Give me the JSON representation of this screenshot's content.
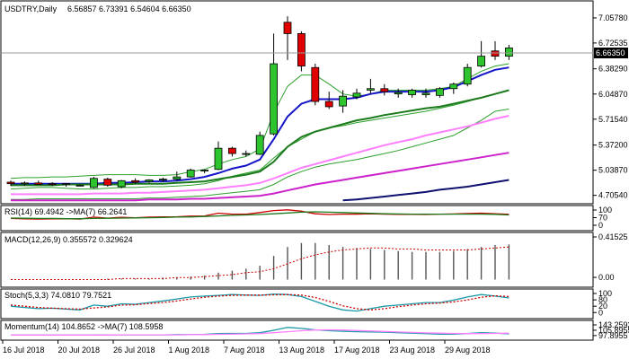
{
  "chart_data": {
    "type": "candlestick",
    "symbol_tf": "USDTRY,Daily",
    "ohlc_header": "6.56857 6.73391 6.54604 6.66350",
    "current_price_label": "6.66350",
    "y_ticks": [
      "7.05780",
      "6.72535",
      "6.38290",
      "6.04870",
      "5.71540",
      "5.37200",
      "5.03870",
      "4.70540"
    ],
    "x_ticks": [
      "16 Jul 2018",
      "20 Jul 2018",
      "26 Jul 2018",
      "1 Aug 2018",
      "7 Aug 2018",
      "13 Aug 2018",
      "17 Aug 2018",
      "23 Aug 2018",
      "29 Aug 2018"
    ],
    "y_range": [
      4.63,
      7.2
    ],
    "candles": [
      {
        "o": 4.88,
        "h": 4.9,
        "l": 4.83,
        "c": 4.86
      },
      {
        "o": 4.86,
        "h": 4.89,
        "l": 4.83,
        "c": 4.87
      },
      {
        "o": 4.87,
        "h": 4.9,
        "l": 4.85,
        "c": 4.85
      },
      {
        "o": 4.86,
        "h": 4.88,
        "l": 4.83,
        "c": 4.85
      },
      {
        "o": 4.85,
        "h": 4.87,
        "l": 4.82,
        "c": 4.86
      },
      {
        "o": 4.84,
        "h": 4.85,
        "l": 4.83,
        "c": 4.84
      },
      {
        "o": 4.81,
        "h": 4.95,
        "l": 4.8,
        "c": 4.93
      },
      {
        "o": 4.92,
        "h": 4.94,
        "l": 4.82,
        "c": 4.84
      },
      {
        "o": 4.82,
        "h": 4.91,
        "l": 4.8,
        "c": 4.9
      },
      {
        "o": 4.9,
        "h": 4.93,
        "l": 4.86,
        "c": 4.88
      },
      {
        "o": 4.89,
        "h": 4.92,
        "l": 4.87,
        "c": 4.91
      },
      {
        "o": 4.91,
        "h": 4.94,
        "l": 4.88,
        "c": 4.92
      },
      {
        "o": 4.92,
        "h": 5.02,
        "l": 4.9,
        "c": 4.95
      },
      {
        "o": 4.95,
        "h": 5.06,
        "l": 4.94,
        "c": 5.04
      },
      {
        "o": 5.03,
        "h": 5.05,
        "l": 5.0,
        "c": 5.04
      },
      {
        "o": 5.05,
        "h": 5.42,
        "l": 5.04,
        "c": 5.33
      },
      {
        "o": 5.33,
        "h": 5.35,
        "l": 5.22,
        "c": 5.26
      },
      {
        "o": 5.26,
        "h": 5.3,
        "l": 5.22,
        "c": 5.26
      },
      {
        "o": 5.25,
        "h": 5.55,
        "l": 5.24,
        "c": 5.5
      },
      {
        "o": 5.52,
        "h": 6.85,
        "l": 5.5,
        "c": 6.45
      },
      {
        "o": 7.0,
        "h": 7.08,
        "l": 6.5,
        "c": 6.85
      },
      {
        "o": 6.85,
        "h": 6.88,
        "l": 6.35,
        "c": 6.42
      },
      {
        "o": 6.4,
        "h": 6.45,
        "l": 5.9,
        "c": 5.95
      },
      {
        "o": 5.95,
        "h": 6.08,
        "l": 5.85,
        "c": 5.88
      },
      {
        "o": 5.89,
        "h": 6.1,
        "l": 5.8,
        "c": 6.02
      },
      {
        "o": 6.01,
        "h": 6.12,
        "l": 5.98,
        "c": 6.06
      },
      {
        "o": 6.1,
        "h": 6.25,
        "l": 6.05,
        "c": 6.12
      },
      {
        "o": 6.12,
        "h": 6.18,
        "l": 6.03,
        "c": 6.08
      },
      {
        "o": 6.05,
        "h": 6.12,
        "l": 6.0,
        "c": 6.07
      },
      {
        "o": 6.04,
        "h": 6.12,
        "l": 6.0,
        "c": 6.1
      },
      {
        "o": 6.04,
        "h": 6.12,
        "l": 6.0,
        "c": 6.06
      },
      {
        "o": 6.03,
        "h": 6.14,
        "l": 6.0,
        "c": 6.12
      },
      {
        "o": 6.12,
        "h": 6.2,
        "l": 6.05,
        "c": 6.18
      },
      {
        "o": 6.18,
        "h": 6.45,
        "l": 6.15,
        "c": 6.4
      },
      {
        "o": 6.42,
        "h": 6.75,
        "l": 6.4,
        "c": 6.55
      },
      {
        "o": 6.62,
        "h": 6.75,
        "l": 6.5,
        "c": 6.55
      },
      {
        "o": 6.55,
        "h": 6.7,
        "l": 6.5,
        "c": 6.66
      }
    ],
    "overlays": [
      {
        "color": "#2ca02c",
        "values": [
          4.93,
          4.94,
          4.94,
          4.95,
          4.95,
          4.96,
          4.97,
          4.98,
          4.98,
          4.98,
          4.97,
          4.97,
          4.98,
          5.02,
          5.05,
          5.12,
          5.18,
          5.22,
          5.32,
          5.8,
          6.15,
          6.3,
          6.3,
          6.18,
          6.05,
          6.02,
          6.05,
          6.1,
          6.1,
          6.1,
          6.1,
          6.12,
          6.15,
          6.25,
          6.35,
          6.42,
          6.45
        ]
      },
      {
        "color": "#2ca02c",
        "values": [
          4.79,
          4.8,
          4.81,
          4.81,
          4.8,
          4.79,
          4.79,
          4.8,
          4.81,
          4.81,
          4.82,
          4.82,
          4.83,
          4.84,
          4.86,
          4.9,
          4.96,
          5.0,
          5.04,
          5.2,
          5.35,
          5.45,
          5.55,
          5.6,
          5.63,
          5.67,
          5.7,
          5.73,
          5.76,
          5.79,
          5.82,
          5.86,
          5.9,
          5.95,
          6.0,
          6.05,
          6.1
        ]
      },
      {
        "color": "#2ca02c",
        "values": [
          4.65,
          4.65,
          4.66,
          4.66,
          4.66,
          4.66,
          4.66,
          4.66,
          4.66,
          4.66,
          4.67,
          4.67,
          4.68,
          4.69,
          4.7,
          4.72,
          4.74,
          4.76,
          4.78,
          4.85,
          4.95,
          5.02,
          5.08,
          5.12,
          5.15,
          5.18,
          5.22,
          5.26,
          5.3,
          5.35,
          5.4,
          5.45,
          5.5,
          5.6,
          5.7,
          5.82,
          5.85
        ]
      },
      {
        "color": "#1515c8",
        "width": 2,
        "values": [
          4.86,
          4.86,
          4.86,
          4.86,
          4.86,
          4.86,
          4.86,
          4.87,
          4.87,
          4.88,
          4.89,
          4.89,
          4.9,
          4.92,
          4.95,
          5.0,
          5.06,
          5.1,
          5.18,
          5.45,
          5.75,
          5.92,
          5.98,
          5.98,
          5.98,
          6.0,
          6.05,
          6.08,
          6.08,
          6.08,
          6.08,
          6.1,
          6.14,
          6.22,
          6.3,
          6.37,
          6.4
        ]
      },
      {
        "color": "#1b7a1b",
        "width": 2,
        "values": [
          4.84,
          4.84,
          4.84,
          4.84,
          4.85,
          4.85,
          4.85,
          4.85,
          4.85,
          4.86,
          4.86,
          4.86,
          4.87,
          4.88,
          4.89,
          4.92,
          4.95,
          4.98,
          5.02,
          5.15,
          5.35,
          5.48,
          5.55,
          5.6,
          5.65,
          5.7,
          5.73,
          5.77,
          5.8,
          5.83,
          5.86,
          5.88,
          5.92,
          5.96,
          6.0,
          6.05,
          6.1
        ]
      },
      {
        "color": "#ff80ff",
        "width": 2,
        "values": [
          4.72,
          4.72,
          4.72,
          4.72,
          4.72,
          4.72,
          4.73,
          4.73,
          4.73,
          4.74,
          4.74,
          4.75,
          4.76,
          4.77,
          4.78,
          4.8,
          4.82,
          4.84,
          4.87,
          4.93,
          5.0,
          5.07,
          5.12,
          5.17,
          5.22,
          5.27,
          5.32,
          5.37,
          5.41,
          5.45,
          5.5,
          5.54,
          5.58,
          5.62,
          5.67,
          5.72,
          5.76
        ]
      },
      {
        "color": "#cc22cc",
        "width": 2,
        "values": [
          4.64,
          4.64,
          4.64,
          4.64,
          4.64,
          4.64,
          4.64,
          4.64,
          4.64,
          4.64,
          4.65,
          4.65,
          4.65,
          4.66,
          4.66,
          4.67,
          4.68,
          4.69,
          4.7,
          4.73,
          4.77,
          4.81,
          4.85,
          4.88,
          4.91,
          4.94,
          4.97,
          5.0,
          5.03,
          5.06,
          5.09,
          5.12,
          5.15,
          5.18,
          5.21,
          5.24,
          5.27
        ]
      },
      {
        "color": "#101070",
        "width": 2,
        "values": [
          null,
          null,
          null,
          null,
          null,
          null,
          null,
          null,
          null,
          null,
          null,
          null,
          null,
          null,
          null,
          null,
          null,
          null,
          null,
          null,
          null,
          null,
          null,
          null,
          4.64,
          4.65,
          4.67,
          4.69,
          4.71,
          4.73,
          4.75,
          4.78,
          4.8,
          4.82,
          4.85,
          4.88,
          4.91
        ]
      }
    ],
    "indicators": [
      {
        "label": "RSI(14) 69.4942 ->MA(7) 66.2641",
        "type": "line",
        "axis_ticks": [
          "100",
          "70",
          "0"
        ],
        "range": [
          0,
          100
        ],
        "series": [
          {
            "color": "#cc0000",
            "values": [
              48,
              46,
              45,
              46,
              47,
              45,
              55,
              50,
              54,
              52,
              55,
              56,
              57,
              60,
              61,
              75,
              70,
              70,
              78,
              88,
              92,
              85,
              72,
              68,
              70,
              70,
              72,
              70,
              69,
              69,
              68,
              70,
              71,
              73,
              75,
              72,
              69
            ]
          },
          {
            "color": "#1b7a1b",
            "values": [
              50,
              49,
              48,
              48,
              47,
              47,
              48,
              49,
              50,
              51,
              52,
              53,
              55,
              56,
              58,
              61,
              64,
              66,
              68,
              72,
              76,
              80,
              82,
              80,
              78,
              76,
              74,
              72,
              71,
              70,
              70,
              70,
              70,
              70,
              70,
              69,
              66
            ]
          }
        ]
      },
      {
        "label": "MACD(12,26,9) 0.355572 0.329624",
        "type": "macd",
        "axis_ticks": [
          "0.41525",
          "0.00"
        ],
        "range": [
          -0.05,
          0.45
        ],
        "hist": [
          0.0,
          0.0,
          0.0,
          0.0,
          0.0,
          0.0,
          0.0,
          0.01,
          0.01,
          0.01,
          0.01,
          0.02,
          0.02,
          0.03,
          0.04,
          0.07,
          0.09,
          0.11,
          0.14,
          0.24,
          0.33,
          0.37,
          0.37,
          0.35,
          0.33,
          0.32,
          0.31,
          0.3,
          0.29,
          0.28,
          0.28,
          0.28,
          0.29,
          0.31,
          0.33,
          0.35,
          0.356
        ],
        "signal": [
          0.0,
          0.0,
          0.0,
          0.0,
          0.0,
          0.0,
          0.0,
          0.0,
          0.01,
          0.01,
          0.01,
          0.01,
          0.02,
          0.02,
          0.03,
          0.04,
          0.05,
          0.07,
          0.08,
          0.11,
          0.16,
          0.21,
          0.25,
          0.28,
          0.3,
          0.31,
          0.32,
          0.32,
          0.31,
          0.31,
          0.3,
          0.3,
          0.3,
          0.3,
          0.31,
          0.32,
          0.33
        ]
      },
      {
        "label": "Stoch(5,3,3) 74.0810 79.7521",
        "type": "line",
        "axis_ticks": [
          "100",
          "80",
          "20",
          "0"
        ],
        "range": [
          0,
          100
        ],
        "series": [
          {
            "color": "#1a9aa8",
            "values": [
              40,
              35,
              30,
              32,
              28,
              25,
              45,
              40,
              50,
              48,
              55,
              62,
              70,
              78,
              82,
              85,
              88,
              86,
              85,
              90,
              88,
              80,
              60,
              40,
              25,
              20,
              30,
              40,
              45,
              50,
              55,
              55,
              65,
              78,
              88,
              82,
              74
            ]
          },
          {
            "color": "#cc0000",
            "dashed": true,
            "values": [
              45,
              40,
              35,
              32,
              30,
              28,
              33,
              37,
              45,
              46,
              51,
              55,
              62,
              70,
              77,
              82,
              85,
              86,
              86,
              87,
              88,
              86,
              76,
              60,
              42,
              30,
              25,
              30,
              38,
              45,
              50,
              53,
              58,
              66,
              77,
              83,
              80
            ]
          }
        ]
      },
      {
        "label": "Momentum(14) 104.8652 ->MA(7) 108.5958",
        "type": "line",
        "axis_ticks": [
          "143.2593",
          "105.8955",
          "97.8955"
        ],
        "range": [
          90,
          150
        ],
        "series": [
          {
            "color": "#1a9aa8",
            "values": [
              100,
              100,
              100,
              100,
              100,
              100,
              101,
              101,
              101,
              101,
              101,
              101,
              102,
              102,
              103,
              106,
              107,
              107,
              110,
              120,
              132,
              128,
              122,
              118,
              116,
              114,
              113,
              112,
              110,
              108,
              106,
              104,
              104,
              106,
              110,
              108,
              105
            ]
          },
          {
            "color": "#ff80ff",
            "values": [
              100,
              100,
              100,
              100,
              100,
              100,
              100,
              100,
              101,
              101,
              101,
              101,
              101,
              102,
              102,
              103,
              104,
              105,
              106,
              110,
              114,
              118,
              121,
              122,
              121,
              119,
              117,
              115,
              113,
              111,
              109,
              108,
              107,
              106,
              106,
              107,
              108
            ]
          }
        ]
      }
    ]
  }
}
